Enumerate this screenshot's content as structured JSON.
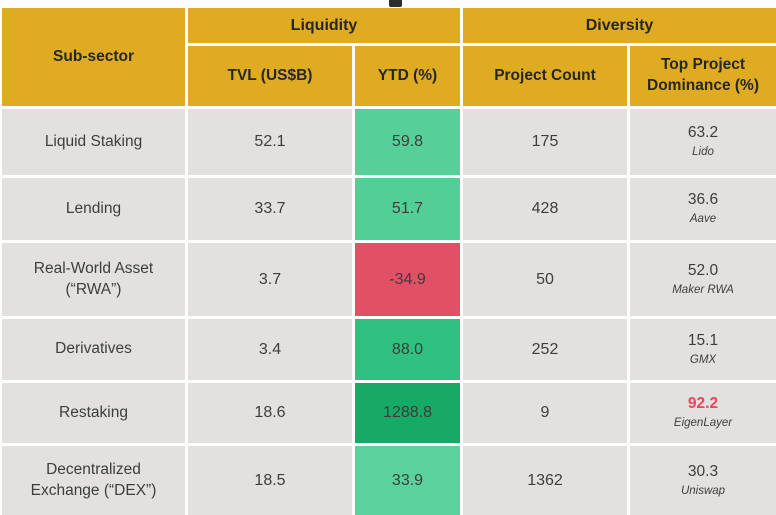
{
  "palette": {
    "header_bg": "#dfac21",
    "cell_bg": "#e2e1df",
    "page_bg": "#fdfdfd",
    "header_text": "#262626",
    "cell_text": "#3d3d3d",
    "green_light": "#56cf99",
    "green_medium": "#30c080",
    "green_dark": "#17a966",
    "red_cell": "#e25066",
    "red_text": "#e8455e"
  },
  "table": {
    "headers": {
      "subsector": "Sub-sector",
      "liquidity_group": "Liquidity",
      "diversity_group": "Diversity",
      "tvl": "TVL (US$B)",
      "ytd": "YTD (%)",
      "project_count": "Project Count",
      "dominance": "Top Project\nDominance (%)"
    },
    "rows": [
      {
        "subsector": "Liquid Staking",
        "tvl": "52.1",
        "ytd": "59.8",
        "ytd_bg": "#56cf99",
        "project_count": "175",
        "dominance": "63.2",
        "dominance_color": "#3d3d3d",
        "top_project": "Lido"
      },
      {
        "subsector": "Lending",
        "tvl": "33.7",
        "ytd": "51.7",
        "ytd_bg": "#52ce96",
        "project_count": "428",
        "dominance": "36.6",
        "dominance_color": "#3d3d3d",
        "top_project": "Aave"
      },
      {
        "subsector": "Real-World Asset\n(“RWA”)",
        "tvl": "3.7",
        "ytd": "-34.9",
        "ytd_bg": "#e25066",
        "project_count": "50",
        "dominance": "52.0",
        "dominance_color": "#3d3d3d",
        "top_project": "Maker RWA"
      },
      {
        "subsector": "Derivatives",
        "tvl": "3.4",
        "ytd": "88.0",
        "ytd_bg": "#30c080",
        "project_count": "252",
        "dominance": "15.1",
        "dominance_color": "#3d3d3d",
        "top_project": "GMX"
      },
      {
        "subsector": "Restaking",
        "tvl": "18.6",
        "ytd": "1288.8",
        "ytd_bg": "#17a966",
        "project_count": "9",
        "dominance": "92.2",
        "dominance_color": "#e8455e",
        "top_project": "EigenLayer"
      },
      {
        "subsector": "Decentralized\nExchange (“DEX”)",
        "tvl": "18.5",
        "ytd": "33.9",
        "ytd_bg": "#5bd29d",
        "project_count": "1362",
        "dominance": "30.3",
        "dominance_color": "#3d3d3d",
        "top_project": "Uniswap"
      }
    ]
  },
  "chart_data": {
    "type": "table",
    "title": "",
    "columns": [
      "Sub-sector",
      "TVL (US$B)",
      "YTD (%)",
      "Project Count",
      "Top Project Dominance (%)",
      "Top Project"
    ],
    "column_groups": [
      {
        "label": "Liquidity",
        "columns": [
          "TVL (US$B)",
          "YTD (%)"
        ]
      },
      {
        "label": "Diversity",
        "columns": [
          "Project Count",
          "Top Project Dominance (%)"
        ]
      }
    ],
    "rows": [
      [
        "Liquid Staking",
        52.1,
        59.8,
        175,
        63.2,
        "Lido"
      ],
      [
        "Lending",
        33.7,
        51.7,
        428,
        36.6,
        "Aave"
      ],
      [
        "Real-World Asset (“RWA”)",
        3.7,
        -34.9,
        50,
        52.0,
        "Maker RWA"
      ],
      [
        "Derivatives",
        3.4,
        88.0,
        252,
        15.1,
        "GMX"
      ],
      [
        "Restaking",
        18.6,
        1288.8,
        9,
        92.2,
        "EigenLayer"
      ],
      [
        "Decentralized Exchange (“DEX”)",
        18.5,
        33.9,
        1362,
        30.3,
        "Uniswap"
      ]
    ]
  }
}
